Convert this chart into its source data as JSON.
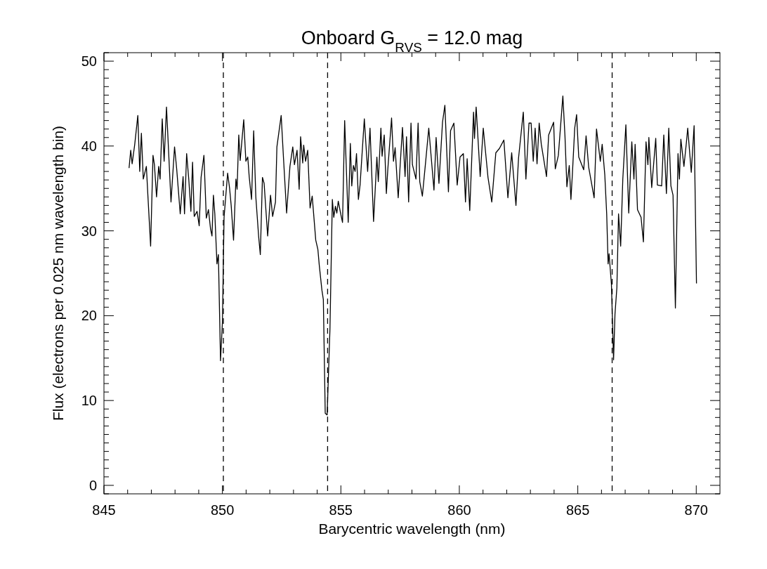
{
  "chart_data": {
    "type": "line",
    "title": "Onboard G$_{RVS}$ = 12.0 mag",
    "xlabel": "Barycentric wavelength (nm)",
    "ylabel": "Flux (electrons per 0.025 nm wavelength bin)",
    "xlim": [
      845,
      871
    ],
    "ylim": [
      -1,
      51
    ],
    "xticks": [
      845,
      {
        "value": 846,
        "label": null
      },
      {
        "value": 847,
        "label": null
      },
      {
        "value": 848,
        "label": null
      },
      {
        "value": 849,
        "label": null
      },
      850,
      {
        "value": 851,
        "label": null
      },
      {
        "value": 852,
        "label": null
      },
      {
        "value": 853,
        "label": null
      },
      {
        "value": 854,
        "label": null
      },
      855,
      {
        "value": 856,
        "label": null
      },
      {
        "value": 857,
        "label": null
      },
      {
        "value": 858,
        "label": null
      },
      {
        "value": 859,
        "label": null
      },
      860,
      {
        "value": 861,
        "label": null
      },
      {
        "value": 862,
        "label": null
      },
      {
        "value": 863,
        "label": null
      },
      {
        "value": 864,
        "label": null
      },
      865,
      {
        "value": 866,
        "label": null
      },
      {
        "value": 867,
        "label": null
      },
      {
        "value": 868,
        "label": null
      },
      {
        "value": 869,
        "label": null
      },
      870
    ],
    "yticks": [
      {
        "value": -1,
        "label": null
      },
      0,
      {
        "value": 1,
        "label": null
      },
      {
        "value": 2,
        "label": null
      },
      {
        "value": 3,
        "label": null
      },
      {
        "value": 4,
        "label": null
      },
      {
        "value": 5,
        "label": null
      },
      {
        "value": 6,
        "label": null
      },
      {
        "value": 7,
        "label": null
      },
      {
        "value": 8,
        "label": null
      },
      {
        "value": 9,
        "label": null
      },
      10,
      {
        "value": 11,
        "label": null
      },
      {
        "value": 12,
        "label": null
      },
      {
        "value": 13,
        "label": null
      },
      {
        "value": 14,
        "label": null
      },
      {
        "value": 15,
        "label": null
      },
      {
        "value": 16,
        "label": null
      },
      {
        "value": 17,
        "label": null
      },
      {
        "value": 18,
        "label": null
      },
      {
        "value": 19,
        "label": null
      },
      20,
      {
        "value": 21,
        "label": null
      },
      {
        "value": 22,
        "label": null
      },
      {
        "value": 23,
        "label": null
      },
      {
        "value": 24,
        "label": null
      },
      {
        "value": 25,
        "label": null
      },
      {
        "value": 26,
        "label": null
      },
      {
        "value": 27,
        "label": null
      },
      {
        "value": 28,
        "label": null
      },
      {
        "value": 29,
        "label": null
      },
      30,
      {
        "value": 31,
        "label": null
      },
      {
        "value": 32,
        "label": null
      },
      {
        "value": 33,
        "label": null
      },
      {
        "value": 34,
        "label": null
      },
      {
        "value": 35,
        "label": null
      },
      {
        "value": 36,
        "label": null
      },
      {
        "value": 37,
        "label": null
      },
      {
        "value": 38,
        "label": null
      },
      {
        "value": 39,
        "label": null
      },
      40,
      {
        "value": 41,
        "label": null
      },
      {
        "value": 42,
        "label": null
      },
      {
        "value": 43,
        "label": null
      },
      {
        "value": 44,
        "label": null
      },
      {
        "value": 45,
        "label": null
      },
      {
        "value": 46,
        "label": null
      },
      {
        "value": 47,
        "label": null
      },
      {
        "value": 48,
        "label": null
      },
      {
        "value": 49,
        "label": null
      },
      50,
      {
        "value": 51,
        "label": null
      }
    ],
    "grid": false,
    "marker": "none",
    "line_style": "solid",
    "ref_lines": [
      {
        "axis": "x",
        "value": 850.04,
        "line_style": "dashed",
        "color": "#000000"
      },
      {
        "axis": "x",
        "value": 854.44,
        "line_style": "dashed",
        "color": "#000000"
      },
      {
        "axis": "x",
        "value": 866.45,
        "line_style": "dashed",
        "color": "#000000"
      }
    ],
    "series": [
      {
        "color": "#000000",
        "x": [
          846.06,
          846.13,
          846.19,
          846.3,
          846.43,
          846.51,
          846.58,
          846.66,
          846.79,
          846.85,
          846.97,
          847.07,
          847.13,
          847.22,
          847.31,
          847.37,
          847.46,
          847.54,
          847.64,
          847.83,
          847.98,
          848.07,
          848.22,
          848.34,
          848.4,
          848.49,
          848.58,
          848.67,
          848.74,
          848.81,
          848.93,
          849.02,
          849.1,
          849.22,
          849.32,
          849.41,
          849.5,
          849.56,
          849.62,
          849.68,
          849.77,
          849.83,
          849.92,
          850.0,
          850.07,
          850.22,
          850.3,
          850.37,
          850.47,
          850.57,
          850.62,
          850.69,
          850.75,
          850.9,
          850.99,
          851.07,
          851.13,
          851.23,
          851.32,
          851.41,
          851.53,
          851.6,
          851.69,
          851.76,
          851.91,
          852.03,
          852.12,
          852.24,
          852.3,
          852.48,
          852.58,
          852.71,
          852.85,
          852.97,
          853.04,
          853.15,
          853.24,
          853.3,
          853.39,
          853.43,
          853.51,
          853.6,
          853.7,
          853.79,
          853.94,
          854.03,
          854.09,
          854.2,
          854.26,
          854.34,
          854.42,
          854.54,
          854.64,
          854.7,
          854.77,
          854.83,
          854.89,
          855.0,
          855.07,
          855.16,
          855.31,
          855.4,
          855.46,
          855.53,
          855.6,
          855.66,
          855.74,
          855.81,
          855.99,
          856.13,
          856.23,
          856.38,
          856.52,
          856.58,
          856.69,
          856.74,
          856.83,
          856.92,
          856.98,
          857.14,
          857.22,
          857.29,
          857.42,
          857.6,
          857.71,
          857.77,
          857.86,
          857.96,
          858.02,
          858.17,
          858.26,
          858.33,
          858.44,
          858.58,
          858.71,
          858.93,
          859.02,
          859.14,
          859.29,
          859.39,
          859.54,
          859.63,
          859.77,
          859.91,
          860.03,
          860.17,
          860.26,
          860.33,
          860.44,
          860.6,
          860.64,
          860.71,
          860.88,
          861.01,
          861.21,
          861.37,
          861.54,
          861.69,
          861.88,
          862.05,
          862.21,
          862.39,
          862.5,
          862.7,
          862.81,
          862.94,
          863.03,
          863.12,
          863.2,
          863.28,
          863.37,
          863.46,
          863.68,
          863.77,
          863.98,
          864.05,
          864.18,
          864.37,
          864.46,
          864.54,
          864.64,
          864.71,
          864.77,
          864.87,
          864.95,
          865.04,
          865.25,
          865.35,
          865.46,
          865.69,
          865.79,
          865.95,
          866.03,
          866.14,
          866.22,
          866.28,
          866.32,
          866.42,
          866.51,
          866.57,
          866.65,
          866.72,
          866.81,
          866.9,
          867.03,
          867.15,
          867.28,
          867.37,
          867.42,
          867.52,
          867.67,
          867.77,
          867.88,
          867.96,
          868.0,
          868.12,
          868.29,
          868.36,
          868.54,
          868.63,
          868.74,
          868.84,
          868.93,
          869.02,
          869.12,
          869.23,
          869.29,
          869.35,
          869.48,
          869.58,
          869.64,
          869.79,
          869.91,
          870.01
        ],
        "values": [
          37.4,
          39.5,
          37.9,
          40.2,
          43.6,
          37.0,
          41.5,
          36.1,
          37.6,
          34.4,
          28.2,
          38.9,
          37.8,
          34.0,
          37.6,
          36.1,
          43.2,
          38.2,
          44.6,
          33.4,
          39.9,
          37.3,
          32.0,
          36.4,
          32.0,
          39.1,
          36.1,
          32.3,
          38.1,
          31.7,
          32.3,
          30.6,
          36.3,
          38.9,
          31.5,
          32.5,
          30.2,
          29.4,
          34.2,
          32.0,
          26.1,
          27.2,
          14.7,
          19.2,
          31.6,
          36.8,
          35.1,
          33.0,
          28.9,
          36.1,
          34.9,
          41.3,
          38.3,
          43.1,
          38.2,
          38.7,
          36.4,
          33.7,
          41.8,
          34.0,
          29.3,
          27.2,
          36.3,
          35.6,
          29.4,
          34.2,
          31.7,
          33.4,
          39.9,
          43.6,
          38.5,
          32.1,
          37.6,
          39.9,
          37.8,
          39.5,
          34.9,
          41.1,
          38.0,
          40.1,
          38.2,
          39.5,
          32.7,
          34.1,
          28.9,
          27.8,
          25.9,
          23.0,
          21.9,
          8.5,
          8.3,
          18.5,
          33.7,
          31.6,
          32.9,
          32.1,
          33.5,
          31.9,
          31.0,
          43.0,
          31.0,
          40.3,
          35.3,
          37.7,
          37.0,
          39.1,
          33.7,
          35.4,
          43.2,
          37.0,
          42.1,
          31.1,
          38.7,
          35.8,
          42.1,
          38.8,
          41.3,
          34.4,
          37.2,
          43.3,
          38.2,
          39.8,
          33.9,
          42.2,
          36.4,
          41.1,
          33.4,
          42.7,
          37.8,
          36.1,
          42.7,
          35.8,
          34.1,
          38.2,
          42.1,
          34.8,
          41.0,
          35.6,
          42.8,
          44.8,
          34.6,
          41.8,
          42.7,
          35.4,
          38.7,
          39.1,
          33.4,
          38.5,
          32.4,
          44.0,
          40.9,
          44.6,
          36.4,
          42.1,
          36.3,
          33.4,
          39.2,
          39.7,
          40.7,
          33.9,
          39.2,
          33.0,
          38.6,
          44.0,
          36.1,
          42.7,
          42.7,
          38.2,
          42.1,
          37.9,
          42.7,
          40.2,
          36.4,
          41.3,
          42.8,
          37.3,
          38.9,
          45.9,
          41.1,
          35.2,
          37.7,
          33.7,
          36.6,
          42.1,
          43.7,
          38.7,
          37.2,
          41.2,
          37.5,
          33.9,
          42.0,
          38.2,
          40.2,
          36.6,
          32.0,
          26.1,
          27.3,
          23.7,
          14.8,
          20.2,
          23.3,
          32.0,
          28.2,
          36.1,
          42.5,
          32.1,
          40.5,
          36.1,
          40.2,
          32.5,
          31.6,
          28.7,
          40.5,
          37.8,
          41.0,
          35.1,
          40.9,
          35.4,
          35.3,
          41.3,
          34.4,
          42.1,
          35.3,
          34.2,
          20.9,
          39.1,
          36.1,
          40.8,
          37.6,
          40.3,
          42.1,
          36.9,
          42.4,
          23.8
        ]
      }
    ]
  }
}
